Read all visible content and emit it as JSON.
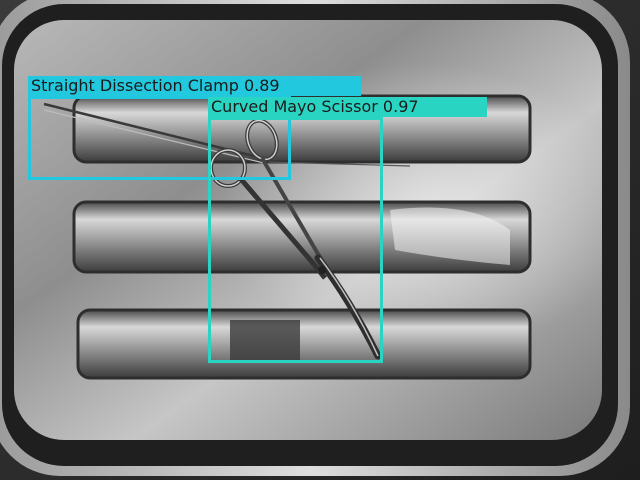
{
  "image": {
    "subject": "stainless steel instrument tray",
    "palette": {
      "tray_dark": "#1c1c1c",
      "tray_mid": "#7a7a7a",
      "tray_light": "#d8d8d8",
      "rim_highlight": "#e6e6e6"
    }
  },
  "detections": [
    {
      "label": "Straight Dissection Clamp",
      "score": "0.89",
      "text": "Straight Dissection Clamp 0.89",
      "color": "#22c8dd"
    },
    {
      "label": "Curved Mayo Scissor",
      "score": "0.97",
      "text": "Curved Mayo Scissor 0.97",
      "color": "#2ad4c2"
    }
  ]
}
